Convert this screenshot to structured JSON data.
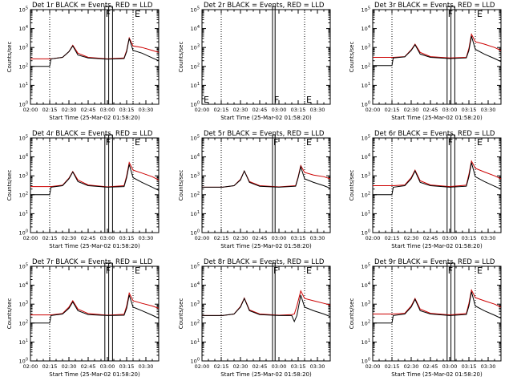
{
  "chart_data": {
    "type": "line",
    "y_scale": "log",
    "ylim": [
      1,
      100000
    ],
    "ytick_labels": [
      "10^0",
      "10^1",
      "10^2",
      "10^3",
      "10^4",
      "10^5"
    ],
    "x_range": [
      "02:00",
      "03:40"
    ],
    "xtick_labels": [
      "02:00",
      "02:15",
      "02:30",
      "02:45",
      "03:00",
      "03:15",
      "03:30"
    ],
    "xlabel": "Start Time (25-Mar-02 01:58:20)",
    "ylabel": "Counts/sec",
    "colors": {
      "events": "#000000",
      "lld": "#cc0000"
    },
    "markers_dotted_at": [
      "02:15",
      "03:20"
    ],
    "panels": [
      {
        "title": "Det 1r BLACK = Events, RED = LLD",
        "letters": [
          "F",
          "E"
        ],
        "box_x": [
          "02:58",
          "03:01",
          "03:04"
        ],
        "x": [
          "02:00",
          "02:15",
          "02:16",
          "02:25",
          "02:30",
          "02:33",
          "02:37",
          "02:45",
          "03:00",
          "03:13",
          "03:15",
          "03:17",
          "03:20",
          "03:27",
          "03:35",
          "03:40"
        ],
        "events": [
          100,
          100,
          250,
          300,
          600,
          1200,
          400,
          280,
          240,
          260,
          600,
          3000,
          700,
          500,
          280,
          200
        ],
        "lld": [
          250,
          250,
          250,
          300,
          600,
          1300,
          500,
          300,
          250,
          280,
          700,
          3200,
          1200,
          1000,
          700,
          550
        ]
      },
      {
        "title": "Det 2r BLACK = Events, RED = LLD",
        "letters": [
          "E",
          "F",
          "E"
        ],
        "box_x": [
          "02:55",
          "02:55",
          "02:57"
        ],
        "x": [],
        "events": [],
        "lld": []
      },
      {
        "title": "Det 3r BLACK = Events, RED = LLD",
        "letters": [
          "F",
          "E"
        ],
        "box_x": [
          "02:58",
          "03:01",
          "03:04"
        ],
        "x": [
          "02:00",
          "02:15",
          "02:16",
          "02:25",
          "02:30",
          "02:33",
          "02:37",
          "02:45",
          "03:00",
          "03:13",
          "03:15",
          "03:17",
          "03:20",
          "03:27",
          "03:35",
          "03:40"
        ],
        "events": [
          110,
          110,
          280,
          320,
          700,
          1400,
          450,
          300,
          260,
          280,
          700,
          4000,
          800,
          450,
          260,
          180
        ],
        "lld": [
          300,
          300,
          300,
          330,
          750,
          1500,
          550,
          330,
          280,
          300,
          900,
          5000,
          2000,
          1500,
          1000,
          700
        ]
      },
      {
        "title": "Det 4r BLACK = Events, RED = LLD",
        "letters": [
          "F",
          "E"
        ],
        "box_x": [
          "02:58",
          "03:01",
          "03:04"
        ],
        "x": [
          "02:00",
          "02:15",
          "02:16",
          "02:25",
          "02:30",
          "02:33",
          "02:37",
          "02:45",
          "03:00",
          "03:13",
          "03:15",
          "03:17",
          "03:20",
          "03:27",
          "03:35",
          "03:40"
        ],
        "events": [
          100,
          100,
          250,
          300,
          700,
          1600,
          500,
          300,
          250,
          270,
          800,
          4000,
          800,
          450,
          250,
          170
        ],
        "lld": [
          270,
          270,
          270,
          320,
          750,
          1700,
          600,
          330,
          260,
          300,
          1000,
          5000,
          2000,
          1400,
          900,
          600
        ]
      },
      {
        "title": "Det 5r BLACK = Events, RED = LLD",
        "letters": [
          "F",
          "E"
        ],
        "box_x": [
          "02:55",
          "02:55",
          "02:57"
        ],
        "x": [
          "02:00",
          "02:15",
          "02:16",
          "02:25",
          "02:30",
          "02:33",
          "02:37",
          "02:45",
          "03:00",
          "03:13",
          "03:15",
          "03:17",
          "03:20",
          "03:27",
          "03:35",
          "03:40"
        ],
        "events": [
          250,
          250,
          250,
          300,
          600,
          1800,
          450,
          280,
          250,
          280,
          800,
          3000,
          700,
          450,
          300,
          220
        ],
        "lld": [
          250,
          250,
          250,
          300,
          650,
          1800,
          500,
          300,
          260,
          300,
          900,
          3500,
          1500,
          1100,
          900,
          700
        ]
      },
      {
        "title": "Det 6r BLACK = Events, RED = LLD",
        "letters": [
          "F",
          "E"
        ],
        "box_x": [
          "02:58",
          "03:01",
          "03:04"
        ],
        "x": [
          "02:00",
          "02:15",
          "02:16",
          "02:25",
          "02:30",
          "02:33",
          "02:37",
          "02:45",
          "03:00",
          "03:13",
          "03:15",
          "03:17",
          "03:20",
          "03:27",
          "03:35",
          "03:40"
        ],
        "events": [
          100,
          100,
          250,
          300,
          700,
          1800,
          450,
          300,
          250,
          280,
          900,
          5000,
          900,
          500,
          280,
          200
        ],
        "lld": [
          300,
          300,
          300,
          330,
          800,
          2000,
          550,
          330,
          270,
          320,
          1200,
          6000,
          2500,
          1600,
          1000,
          700
        ]
      },
      {
        "title": "Det 7r BLACK = Events, RED = LLD",
        "letters": [
          "F",
          "E"
        ],
        "box_x": [
          "02:58",
          "03:01",
          "03:04"
        ],
        "x": [
          "02:00",
          "02:15",
          "02:16",
          "02:25",
          "02:30",
          "02:33",
          "02:37",
          "02:45",
          "03:00",
          "03:13",
          "03:15",
          "03:17",
          "03:20",
          "03:27",
          "03:35",
          "03:40"
        ],
        "events": [
          100,
          100,
          250,
          300,
          600,
          1300,
          450,
          280,
          250,
          260,
          600,
          3000,
          700,
          450,
          260,
          180
        ],
        "lld": [
          270,
          270,
          270,
          320,
          700,
          1500,
          550,
          320,
          260,
          290,
          800,
          3800,
          1500,
          1100,
          800,
          600
        ]
      },
      {
        "title": "Det 8r BLACK = Events, RED = LLD",
        "letters": [
          "F",
          "E"
        ],
        "box_x": [
          "02:55",
          "02:55",
          "02:57"
        ],
        "x": [
          "02:00",
          "02:15",
          "02:16",
          "02:25",
          "02:30",
          "02:33",
          "02:37",
          "02:45",
          "03:00",
          "03:10",
          "03:12",
          "03:14",
          "03:17",
          "03:20",
          "03:27",
          "03:35",
          "03:40"
        ],
        "events": [
          250,
          250,
          250,
          300,
          700,
          2000,
          450,
          280,
          250,
          250,
          120,
          250,
          3000,
          700,
          450,
          300,
          220
        ],
        "lld": [
          250,
          250,
          250,
          300,
          750,
          2100,
          500,
          300,
          260,
          280,
          300,
          800,
          5000,
          2000,
          1500,
          1100,
          900
        ]
      },
      {
        "title": "Det 9r BLACK = Events, RED = LLD",
        "letters": [
          "F",
          "E"
        ],
        "box_x": [
          "02:58",
          "03:01",
          "03:04"
        ],
        "x": [
          "02:00",
          "02:15",
          "02:16",
          "02:25",
          "02:30",
          "02:33",
          "02:37",
          "02:45",
          "03:00",
          "03:13",
          "03:15",
          "03:17",
          "03:20",
          "03:27",
          "03:35",
          "03:40"
        ],
        "events": [
          100,
          100,
          250,
          300,
          700,
          1800,
          450,
          300,
          250,
          280,
          800,
          4500,
          800,
          450,
          260,
          180
        ],
        "lld": [
          300,
          300,
          300,
          330,
          800,
          2000,
          550,
          330,
          270,
          320,
          1100,
          5500,
          2200,
          1500,
          1000,
          700
        ]
      }
    ]
  }
}
